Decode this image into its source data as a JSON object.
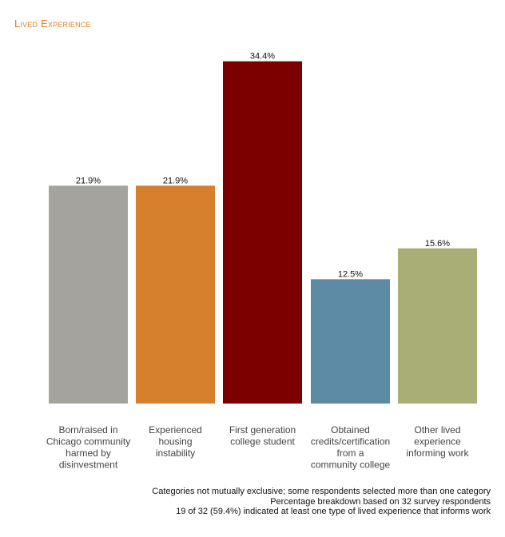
{
  "chart_data": {
    "type": "bar",
    "title": "Lived Experience",
    "categories": [
      "Born/raised in Chicago community harmed by disinvestment",
      "Experienced housing instability",
      "First generation college student",
      "Obtained credits/certification from a community college",
      "Other lived experience informing work"
    ],
    "category_lines": [
      [
        "Born/raised in",
        "Chicago community",
        "harmed by",
        "disinvestment"
      ],
      [
        "Experienced",
        "housing",
        "instability"
      ],
      [
        "First generation",
        "college student"
      ],
      [
        "Obtained",
        "credits/certification",
        "from a",
        "community college"
      ],
      [
        "Other lived",
        "experience",
        "informing work"
      ]
    ],
    "values": [
      21.9,
      21.9,
      34.4,
      12.5,
      15.6
    ],
    "value_labels": [
      "21.9%",
      "21.9%",
      "34.4%",
      "12.5%",
      "15.6%"
    ],
    "colors": [
      "#a4a39e",
      "#d6802e",
      "#7d0000",
      "#5d8aa5",
      "#a9ad76"
    ],
    "ylim": [
      0,
      35
    ],
    "grid": false,
    "legend": "none"
  },
  "notes": [
    "Categories not mutually exclusive; some respondents selected more than one category",
    "Percentage breakdown based on 32 survey respondents",
    "19 of 32 (59.4%) indicated at least one type of lived experience that informs work"
  ]
}
